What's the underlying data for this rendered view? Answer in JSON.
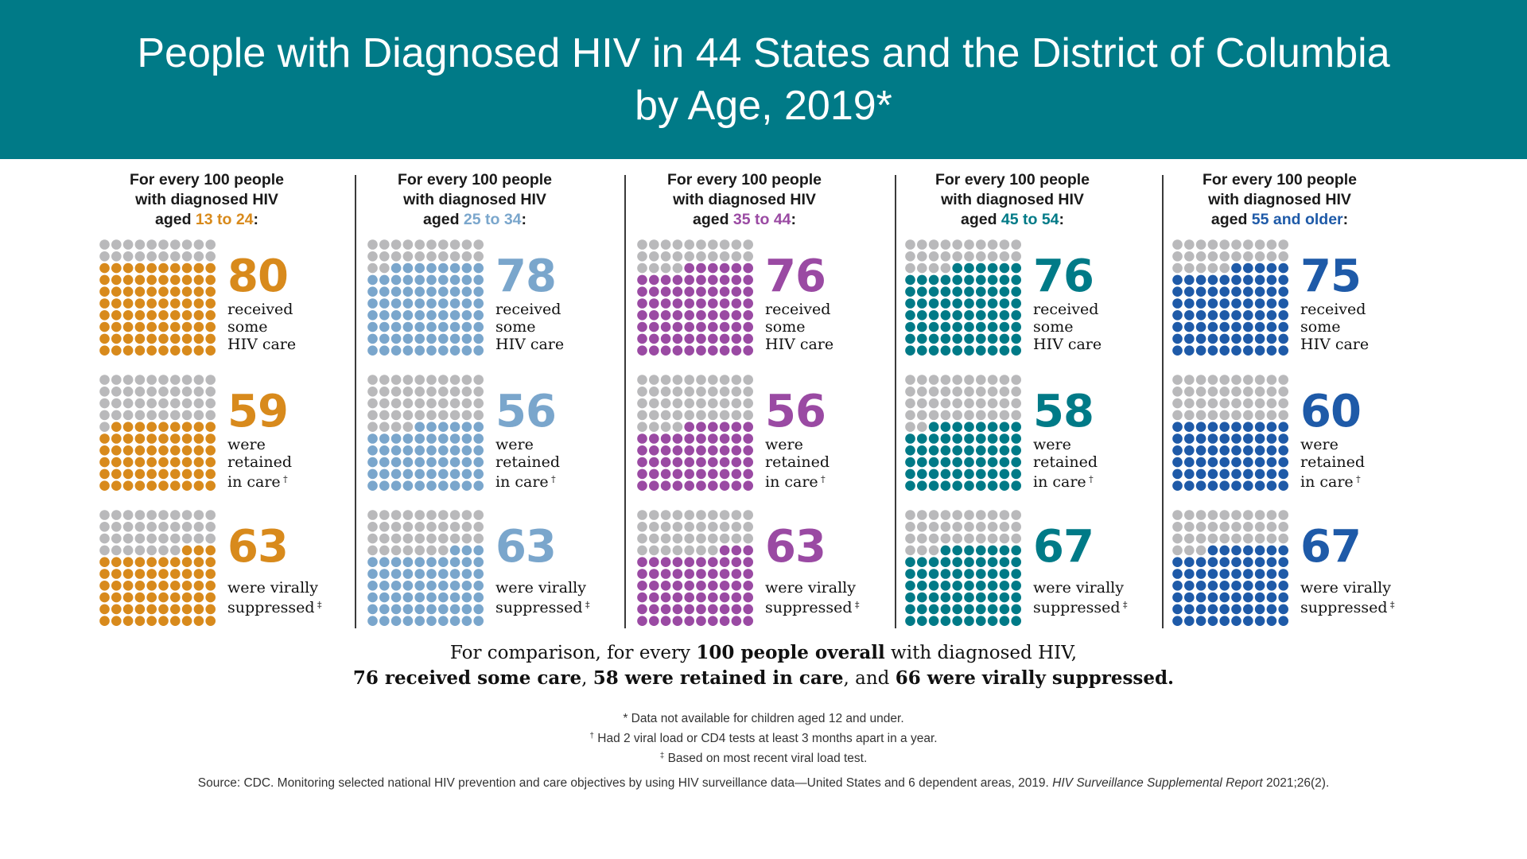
{
  "title_line1": "People with Diagnosed HIV in 44 States and the District of Columbia",
  "title_line2": "by Age, 2019*",
  "colors": {
    "banner": "#007a87",
    "empty_dot": "#b9b9bb",
    "age_13_24": "#d88a1c",
    "age_25_34": "#7aa6cc",
    "age_35_44": "#9a4aa3",
    "age_45_54": "#007a87",
    "age_55_older": "#1e5aa8"
  },
  "chart_data": {
    "type": "waffle",
    "unit": "for every 100 people",
    "metrics": [
      "received some HIV care",
      "were retained in care",
      "were virally suppressed"
    ],
    "groups": [
      {
        "heading_line1": "For every 100 people",
        "heading_line2": "with diagnosed HIV",
        "heading_prefix": "aged ",
        "age": "13 to 24",
        "heading_suffix": ":",
        "color_key": "age_13_24",
        "values": [
          80,
          59,
          63
        ]
      },
      {
        "heading_line1": "For every 100 people",
        "heading_line2": "with diagnosed HIV",
        "heading_prefix": "aged ",
        "age": "25 to 34",
        "heading_suffix": ":",
        "color_key": "age_25_34",
        "values": [
          78,
          56,
          63
        ]
      },
      {
        "heading_line1": "For every 100 people",
        "heading_line2": "with diagnosed HIV",
        "heading_prefix": "aged ",
        "age": "35 to 44",
        "heading_suffix": ":",
        "color_key": "age_35_44",
        "values": [
          76,
          56,
          63
        ]
      },
      {
        "heading_line1": "For every 100 people",
        "heading_line2": "with diagnosed HIV",
        "heading_prefix": "aged ",
        "age": "45 to 54",
        "heading_suffix": ":",
        "color_key": "age_45_54",
        "values": [
          76,
          58,
          67
        ]
      },
      {
        "heading_line1": "For every 100 people",
        "heading_line2": "with diagnosed HIV",
        "heading_prefix": "aged ",
        "age": "55 and older",
        "heading_suffix": ":",
        "color_key": "age_55_older",
        "values": [
          75,
          60,
          67
        ]
      }
    ],
    "metric_labels": [
      {
        "lines": [
          "received",
          "some",
          "HIV care"
        ],
        "mark": ""
      },
      {
        "lines": [
          "were",
          "retained",
          "in care"
        ],
        "mark": "†"
      },
      {
        "lines": [
          "were virally",
          "suppressed"
        ],
        "mark": "‡"
      }
    ]
  },
  "comparison": {
    "line1_a": "For comparison, for every ",
    "line1_b": "100 people overall",
    "line1_c": " with diagnosed HIV,",
    "line2_a": "76 received some care",
    "line2_b": ", ",
    "line2_c": "58 were retained in care",
    "line2_d": ", and ",
    "line2_e": "66 were virally suppressed."
  },
  "notes": {
    "n1": "* Data not available for children aged 12 and under.",
    "n2_mark": "†",
    "n2": " Had 2 viral load or CD4 tests at least 3 months apart in a year.",
    "n3_mark": "‡",
    "n3": " Based on most recent viral load test."
  },
  "source": {
    "main": "Source: CDC. Monitoring selected national HIV prevention and care objectives by using HIV surveillance data—United States and 6 dependent areas, 2019. ",
    "italic": "HIV Surveillance Supplemental Report",
    "end": " 2021;26(2)."
  }
}
